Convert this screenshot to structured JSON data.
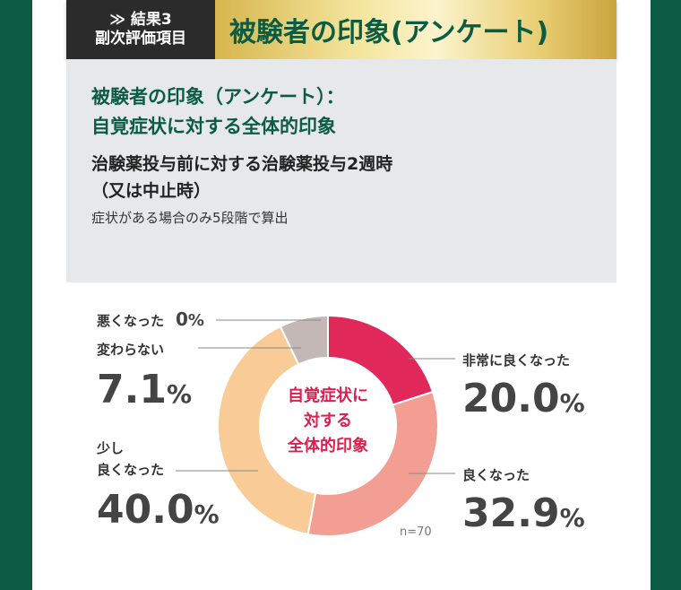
{
  "header": {
    "tag_line1": "≫ 結果3",
    "tag_line2": "副次評価項目",
    "title": "被験者の印象(アンケート)"
  },
  "info": {
    "title_line1": "被験者の印象（アンケート）：",
    "title_line2": "自覚症状に対する全体的印象",
    "subtitle_line1": "治験薬投与前に対する治験薬投与2週時",
    "subtitle_line2": "（又は中止時）",
    "note": "症状がある場合のみ5段階で算出"
  },
  "chart_data": {
    "type": "pie",
    "center_label": [
      "自覚症状に",
      "対する",
      "全体的印象"
    ],
    "n_label": "n=70",
    "slices": [
      {
        "label": "非常に良くなった",
        "value": 20.0,
        "display": "20.0",
        "color": "#e0285a"
      },
      {
        "label": "良くなった",
        "value": 32.9,
        "display": "32.9",
        "color": "#f29e92"
      },
      {
        "label": "少し\n良くなった",
        "value": 40.0,
        "display": "40.0",
        "color": "#f9cb96"
      },
      {
        "label": "変わらない",
        "value": 7.1,
        "display": "7.1",
        "color": "#c3b8b6"
      },
      {
        "label": "悪くなった",
        "value": 0,
        "display": "0",
        "color": "#999999"
      }
    ],
    "percent_sign": "%"
  }
}
